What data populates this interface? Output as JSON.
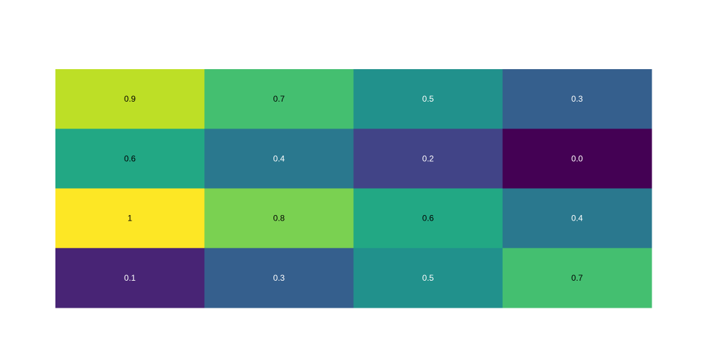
{
  "chart_data": {
    "type": "heatmap",
    "title": "",
    "xlabel": "",
    "ylabel": "",
    "colorscale": "viridis",
    "value_range": [
      0,
      1
    ],
    "grid": false,
    "legend": "none",
    "values": [
      [
        0.9,
        0.7,
        0.5,
        0.3
      ],
      [
        0.6,
        0.4,
        0.2,
        0.0
      ],
      [
        1,
        0.8,
        0.6,
        0.4
      ],
      [
        0.1,
        0.3,
        0.5,
        0.7
      ]
    ],
    "labels": [
      [
        "0.9",
        "0.7",
        "0.5",
        "0.3"
      ],
      [
        "0.6",
        "0.4",
        "0.2",
        "0.0"
      ],
      [
        "1",
        "0.8",
        "0.6",
        "0.4"
      ],
      [
        "0.1",
        "0.3",
        "0.5",
        "0.7"
      ]
    ],
    "colors": [
      [
        "#bddf26",
        "#44bf70",
        "#21918c",
        "#355f8d"
      ],
      [
        "#22a884",
        "#2a788e",
        "#414487",
        "#440154"
      ],
      [
        "#fde725",
        "#7ad151",
        "#22a884",
        "#2a788e"
      ],
      [
        "#482475",
        "#355f8d",
        "#21918c",
        "#44bf70"
      ]
    ],
    "label_colors": [
      [
        "#000000",
        "#000000",
        "#ffffff",
        "#ffffff"
      ],
      [
        "#000000",
        "#ffffff",
        "#ffffff",
        "#ffffff"
      ],
      [
        "#000000",
        "#000000",
        "#000000",
        "#ffffff"
      ],
      [
        "#ffffff",
        "#ffffff",
        "#ffffff",
        "#000000"
      ]
    ]
  }
}
